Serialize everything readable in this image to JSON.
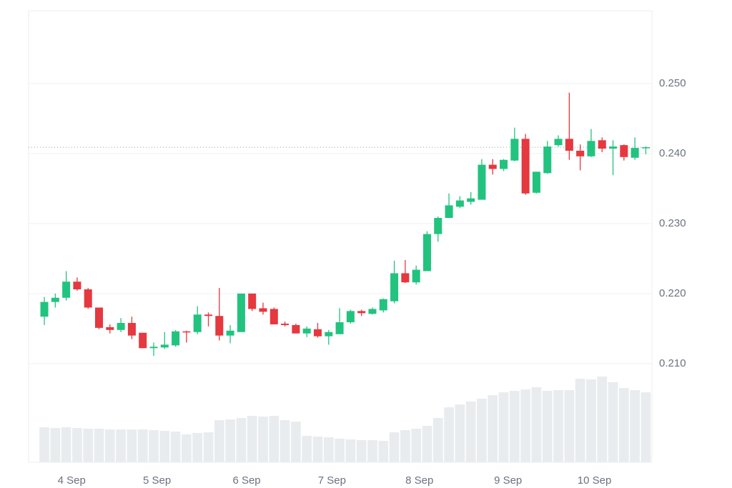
{
  "chart_data": {
    "type": "candlestick",
    "open": [
      0.2167,
      0.2188,
      0.2194,
      0.2217,
      0.2206,
      0.218,
      0.2152,
      0.2148,
      0.2158,
      0.2144,
      0.2122,
      0.2123,
      0.2126,
      0.2146,
      0.2145,
      0.217,
      0.2168,
      0.214,
      0.2145,
      0.22,
      0.2179,
      0.2178,
      0.2157,
      0.2155,
      0.2143,
      0.2149,
      0.2139,
      0.2142,
      0.2159,
      0.2175,
      0.2171,
      0.2176,
      0.2189,
      0.2229,
      0.2216,
      0.2232,
      0.2285,
      0.2308,
      0.2324,
      0.2331,
      0.2334,
      0.2384,
      0.2378,
      0.239,
      0.2421,
      0.2344,
      0.2372,
      0.2412,
      0.2421,
      0.2404,
      0.2396,
      0.2419,
      0.2407,
      0.2412,
      0.2394,
      0.2408
    ],
    "high": [
      0.2195,
      0.22,
      0.2232,
      0.2223,
      0.2208,
      0.218,
      0.2156,
      0.2165,
      0.2167,
      0.2144,
      0.213,
      0.2145,
      0.2148,
      0.2147,
      0.2182,
      0.2173,
      0.2208,
      0.2155,
      0.22,
      0.22,
      0.2187,
      0.218,
      0.216,
      0.2157,
      0.2153,
      0.2158,
      0.2148,
      0.2179,
      0.2177,
      0.2177,
      0.218,
      0.2193,
      0.2247,
      0.2248,
      0.224,
      0.2289,
      0.231,
      0.2343,
      0.2339,
      0.2345,
      0.2392,
      0.2392,
      0.2392,
      0.2437,
      0.2428,
      0.2374,
      0.2418,
      0.2426,
      0.2487,
      0.2413,
      0.2435,
      0.2423,
      0.2419,
      0.2413,
      0.2423,
      0.241
    ],
    "low": [
      0.2155,
      0.218,
      0.219,
      0.2204,
      0.2178,
      0.2149,
      0.2143,
      0.2145,
      0.2135,
      0.2122,
      0.2111,
      0.2121,
      0.2124,
      0.213,
      0.2142,
      0.2153,
      0.2133,
      0.2129,
      0.2145,
      0.2175,
      0.217,
      0.2156,
      0.2153,
      0.2143,
      0.2138,
      0.2137,
      0.2127,
      0.2142,
      0.2157,
      0.2168,
      0.217,
      0.2173,
      0.2186,
      0.2215,
      0.2213,
      0.2232,
      0.2274,
      0.2308,
      0.2322,
      0.2327,
      0.2334,
      0.237,
      0.2375,
      0.2389,
      0.2341,
      0.2343,
      0.2371,
      0.241,
      0.2391,
      0.2376,
      0.2395,
      0.2402,
      0.2369,
      0.239,
      0.2391,
      0.2399
    ],
    "close": [
      0.2188,
      0.2194,
      0.2217,
      0.2206,
      0.218,
      0.2151,
      0.2148,
      0.2158,
      0.214,
      0.2122,
      0.2124,
      0.2127,
      0.2146,
      0.2145,
      0.217,
      0.2168,
      0.214,
      0.2147,
      0.22,
      0.2178,
      0.2174,
      0.2156,
      0.2155,
      0.2143,
      0.215,
      0.2139,
      0.2145,
      0.2159,
      0.2175,
      0.2172,
      0.2178,
      0.2192,
      0.2229,
      0.2216,
      0.2234,
      0.2285,
      0.2308,
      0.2326,
      0.2333,
      0.2336,
      0.2384,
      0.2378,
      0.2391,
      0.2421,
      0.2343,
      0.2374,
      0.241,
      0.2421,
      0.2404,
      0.2396,
      0.2418,
      0.2407,
      0.241,
      0.2395,
      0.2408,
      0.2409
    ],
    "volume": [
      49,
      48,
      49,
      48,
      47,
      47,
      46,
      46,
      46,
      46,
      45,
      44,
      43,
      39,
      41,
      42,
      59,
      60,
      62,
      65,
      64,
      65,
      59,
      57,
      37,
      36,
      35,
      33,
      32,
      31,
      31,
      30,
      42,
      45,
      47,
      51,
      62,
      77,
      81,
      85,
      89,
      94,
      98,
      100,
      102,
      105,
      100,
      101,
      101,
      117,
      116,
      120,
      112,
      104,
      101,
      98
    ],
    "up_color": "#22c37f",
    "down_color": "#e5383f",
    "volume_color": "#e9ecef",
    "last_price": 0.2409,
    "ylim": [
      0.1959,
      0.2604
    ],
    "yticks": [
      {
        "value": 0.21,
        "label": "0.210"
      },
      {
        "value": 0.22,
        "label": "0.220"
      },
      {
        "value": 0.23,
        "label": "0.230"
      },
      {
        "value": 0.24,
        "label": "0.240"
      },
      {
        "value": 0.25,
        "label": "0.250"
      }
    ],
    "xlim": [
      -1.44,
      55.56
    ],
    "xticks": [
      {
        "value": 2.5,
        "label": "4 Sep"
      },
      {
        "value": 10.3,
        "label": "5 Sep"
      },
      {
        "value": 18.5,
        "label": "6 Sep"
      },
      {
        "value": 26.3,
        "label": "7 Sep"
      },
      {
        "value": 34.3,
        "label": "8 Sep"
      },
      {
        "value": 42.4,
        "label": "9 Sep"
      },
      {
        "value": 50.3,
        "label": "10 Sep"
      }
    ],
    "vlim": [
      0,
      150
    ],
    "grid": true
  }
}
